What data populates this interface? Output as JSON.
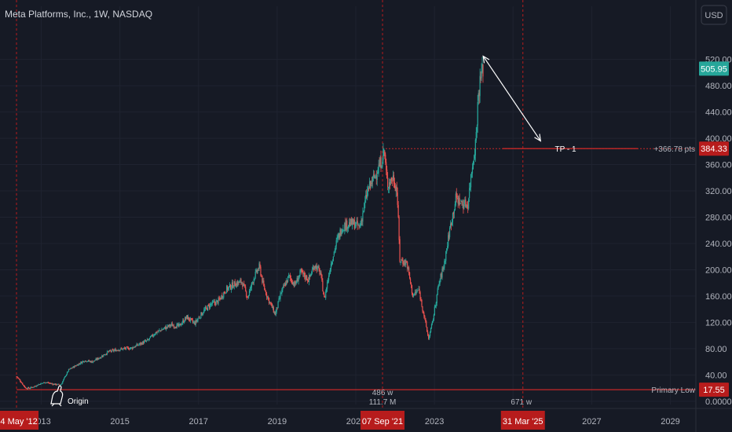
{
  "chart_data": {
    "type": "candlestick",
    "title": "Meta Platforms, Inc., 1W, NASDAQ",
    "currency": "USD",
    "y_ticks": [
      0,
      40,
      80,
      120,
      160,
      200,
      240,
      280,
      320,
      360,
      400,
      440,
      480,
      520
    ],
    "y_tick_labels": [
      "0.0000",
      "40.00",
      "80.00",
      "120.00",
      "160.00",
      "200.00",
      "240.00",
      "280.00",
      "320.00",
      "360.00",
      "400.00",
      "440.00",
      "480.00",
      "520.00"
    ],
    "ylim": [
      -5,
      565
    ],
    "x_ticks": [
      2013,
      2015,
      2017,
      2019,
      2021,
      2023,
      2025,
      2027,
      2029
    ],
    "x_tick_labels": [
      "2013",
      "2015",
      "2017",
      "2019",
      "2021",
      "2023",
      "2025",
      "2027",
      "2029"
    ],
    "xlim": [
      2011.95,
      2029.65
    ],
    "price_series": [
      [
        2012.37,
        38
      ],
      [
        2012.5,
        28
      ],
      [
        2012.6,
        20
      ],
      [
        2012.7,
        20
      ],
      [
        2012.8,
        22
      ],
      [
        2012.95,
        26
      ],
      [
        2013.1,
        29
      ],
      [
        2013.3,
        26
      ],
      [
        2013.5,
        25
      ],
      [
        2013.6,
        37
      ],
      [
        2013.7,
        48
      ],
      [
        2013.9,
        55
      ],
      [
        2014.1,
        62
      ],
      [
        2014.3,
        60
      ],
      [
        2014.5,
        67
      ],
      [
        2014.7,
        75
      ],
      [
        2014.9,
        78
      ],
      [
        2015.1,
        80
      ],
      [
        2015.3,
        81
      ],
      [
        2015.5,
        87
      ],
      [
        2015.7,
        92
      ],
      [
        2015.9,
        104
      ],
      [
        2016.1,
        110
      ],
      [
        2016.3,
        116
      ],
      [
        2016.5,
        114
      ],
      [
        2016.7,
        128
      ],
      [
        2016.9,
        118
      ],
      [
        2017.1,
        135
      ],
      [
        2017.3,
        147
      ],
      [
        2017.5,
        152
      ],
      [
        2017.7,
        170
      ],
      [
        2017.9,
        178
      ],
      [
        2018.1,
        182
      ],
      [
        2018.25,
        158
      ],
      [
        2018.4,
        187
      ],
      [
        2018.55,
        205
      ],
      [
        2018.65,
        175
      ],
      [
        2018.8,
        152
      ],
      [
        2018.95,
        132
      ],
      [
        2019.1,
        165
      ],
      [
        2019.3,
        190
      ],
      [
        2019.45,
        177
      ],
      [
        2019.6,
        196
      ],
      [
        2019.8,
        185
      ],
      [
        2019.95,
        208
      ],
      [
        2020.1,
        195
      ],
      [
        2020.2,
        155
      ],
      [
        2020.35,
        205
      ],
      [
        2020.5,
        240
      ],
      [
        2020.65,
        265
      ],
      [
        2020.8,
        270
      ],
      [
        2020.95,
        270
      ],
      [
        2021.1,
        265
      ],
      [
        2021.3,
        320
      ],
      [
        2021.5,
        345
      ],
      [
        2021.65,
        365
      ],
      [
        2021.72,
        383
      ],
      [
        2021.8,
        330
      ],
      [
        2021.95,
        340
      ],
      [
        2022.05,
        320
      ],
      [
        2022.12,
        215
      ],
      [
        2022.3,
        210
      ],
      [
        2022.45,
        160
      ],
      [
        2022.6,
        170
      ],
      [
        2022.72,
        135
      ],
      [
        2022.85,
        95
      ],
      [
        2022.95,
        120
      ],
      [
        2023.1,
        175
      ],
      [
        2023.25,
        210
      ],
      [
        2023.4,
        265
      ],
      [
        2023.55,
        310
      ],
      [
        2023.7,
        300
      ],
      [
        2023.85,
        300
      ],
      [
        2023.95,
        353
      ],
      [
        2024.05,
        395
      ],
      [
        2024.12,
        470
      ],
      [
        2024.2,
        500
      ],
      [
        2024.24,
        506
      ]
    ],
    "origin_price": 17.55,
    "target_price": 384.33,
    "current_price": 505.95,
    "vertical_markers": [
      {
        "x": 2012.37,
        "label": "14 May '12"
      },
      {
        "x": 2021.68,
        "label": "07 Sep '21"
      },
      {
        "x": 2025.25,
        "label": "31 Mar '25"
      }
    ],
    "annotations": {
      "origin": "Origin",
      "primary_low": "Primary Low",
      "tp": "TP - 1",
      "pts": "+366.78 pts",
      "bars_a": "486 w",
      "volume_a": "111.7 M",
      "bars_b": "671 w"
    },
    "arrow": {
      "x1": 2024.24,
      "y1": 525,
      "x2": 2025.7,
      "y2": 396
    },
    "price_labels": {
      "current": "505.95",
      "target": "384.33",
      "low": "17.55"
    },
    "colors": {
      "up": "#26a69a",
      "down": "#ef5350",
      "marker": "#b71c1c",
      "line_red": "#c62828",
      "current_bg": "#26a69a",
      "label_red_bg": "#b71c1c",
      "bg": "#161a25"
    }
  }
}
